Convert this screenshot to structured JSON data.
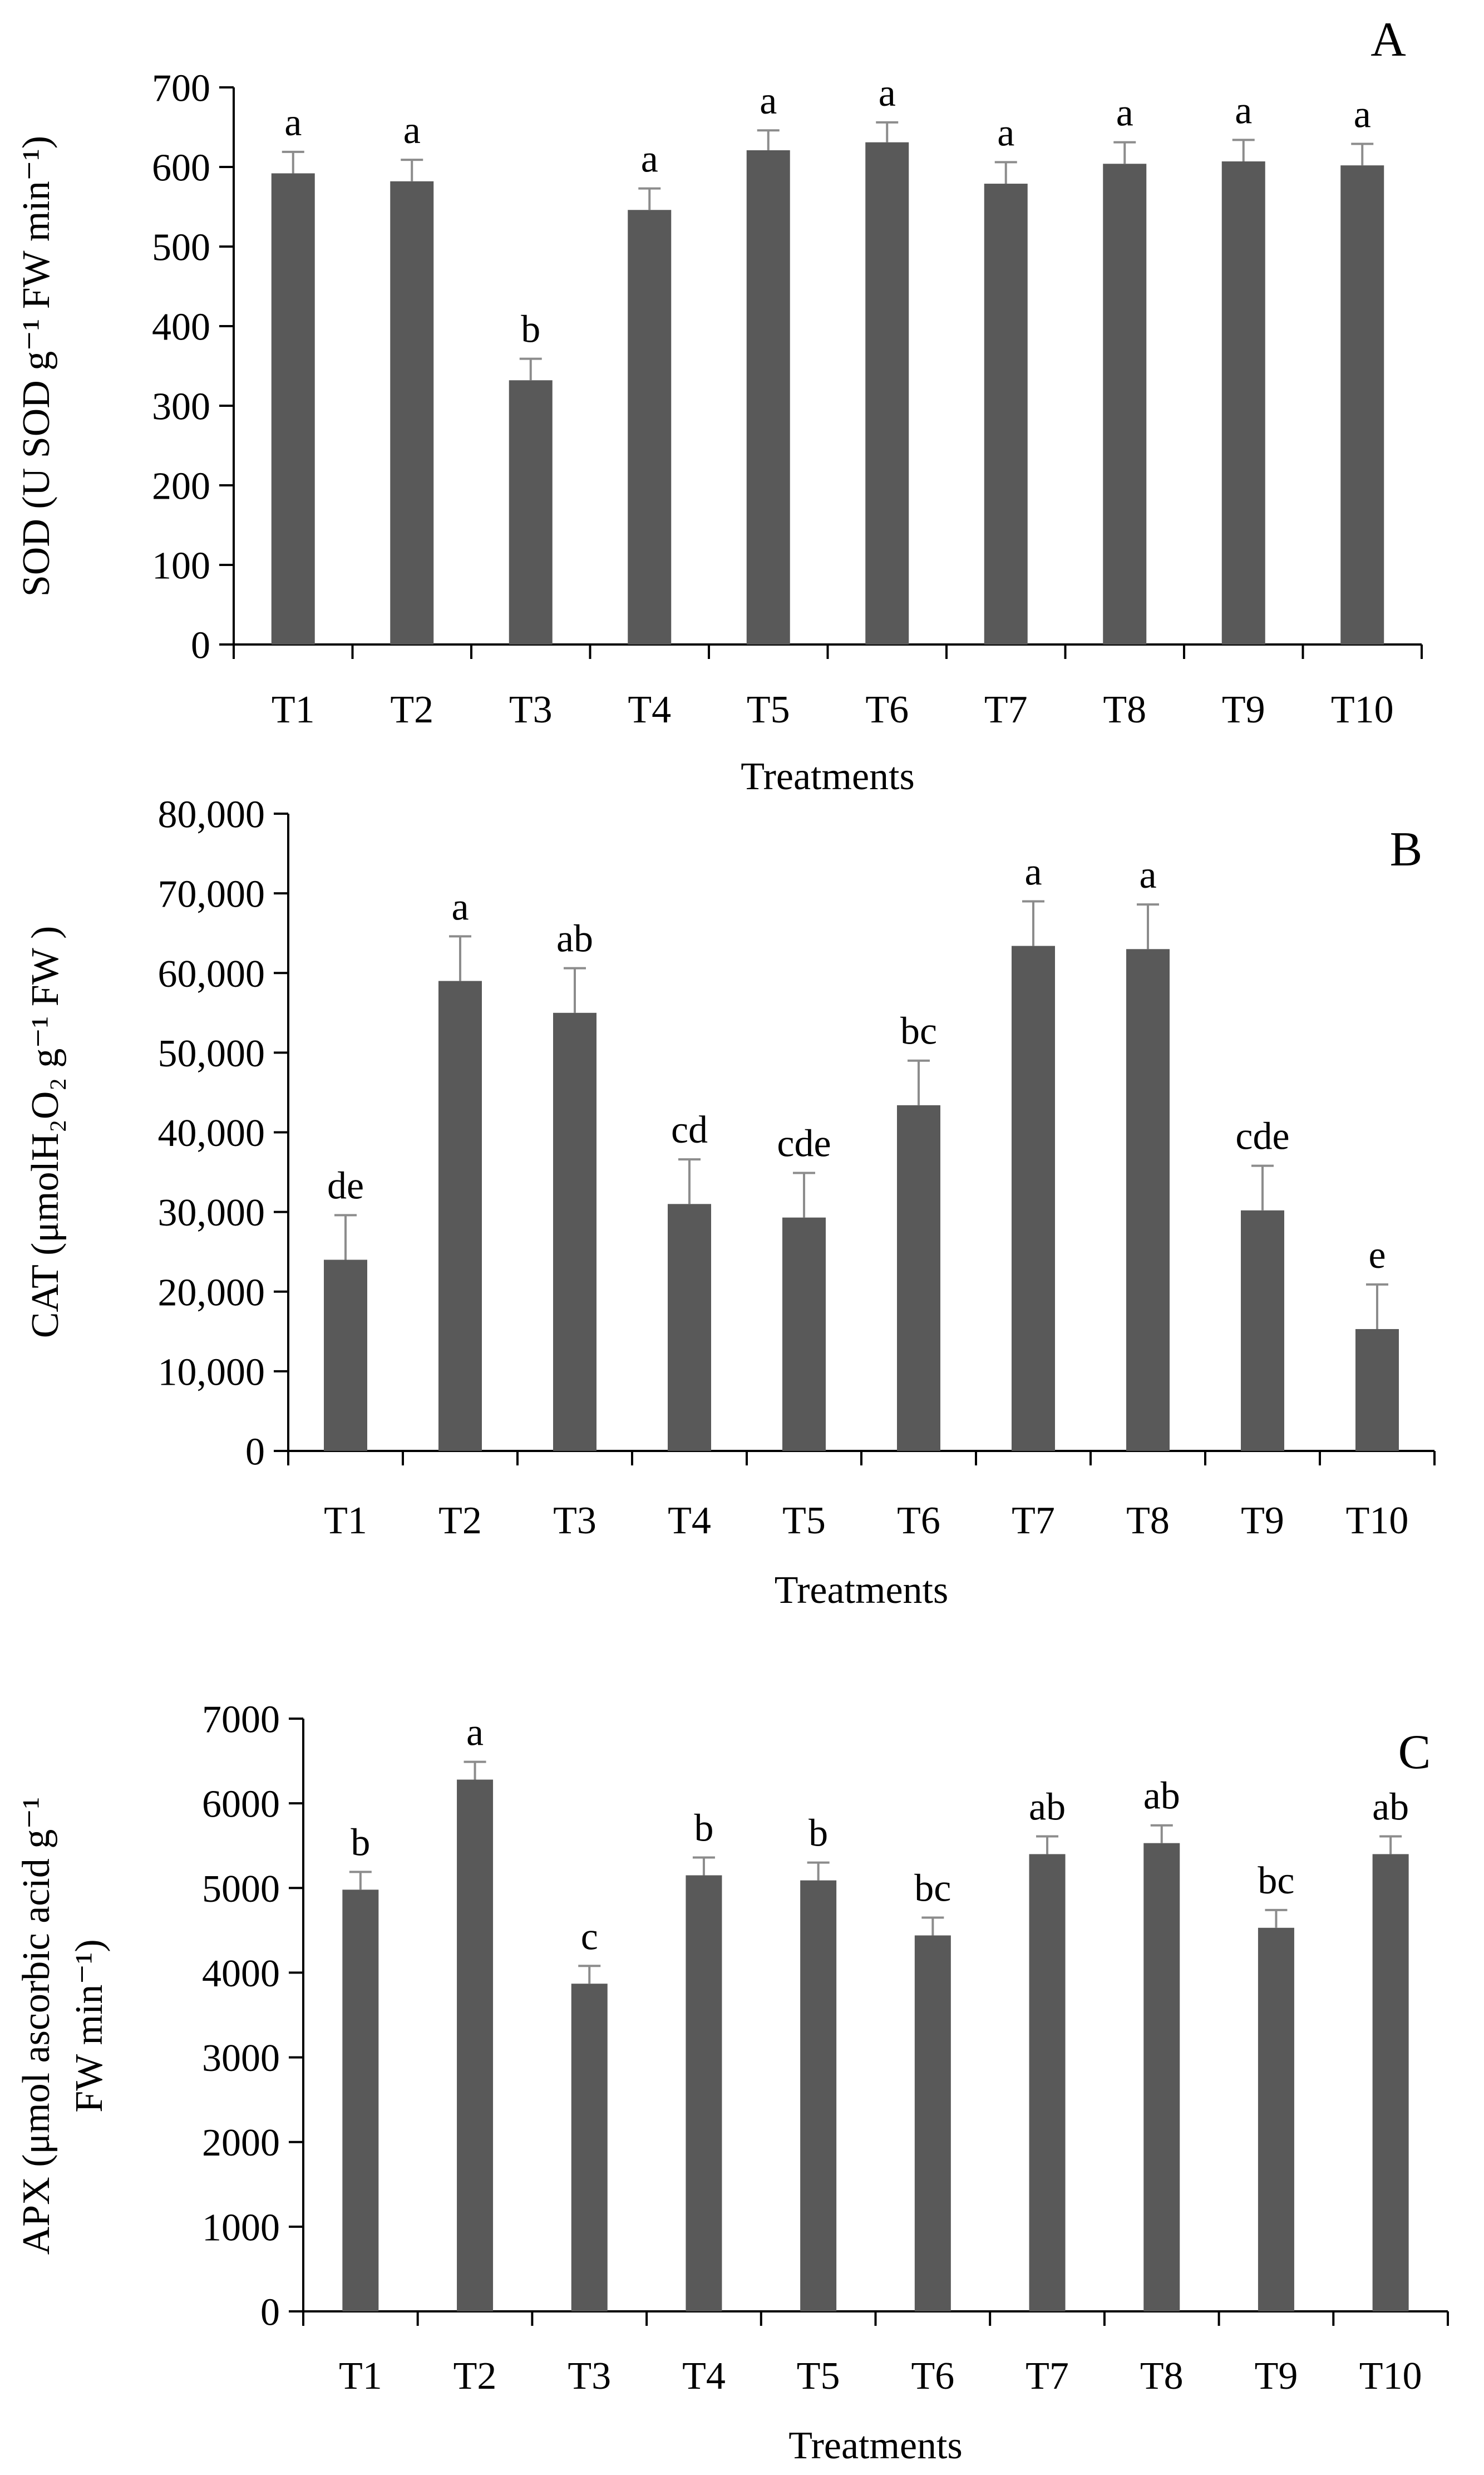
{
  "chart_data": [
    {
      "type": "bar",
      "panel_letter": "A",
      "categories": [
        "T1",
        "T2",
        "T3",
        "T4",
        "T5",
        "T6",
        "T7",
        "T8",
        "T9",
        "T10"
      ],
      "values": [
        592,
        582,
        332,
        546,
        621,
        631,
        579,
        604,
        607,
        602
      ],
      "error": [
        27,
        27,
        27,
        27,
        25,
        25,
        27,
        27,
        27,
        27
      ],
      "letters": [
        "a",
        "a",
        "b",
        "a",
        "a",
        "a",
        "a",
        "a",
        "a",
        "a"
      ],
      "ylim": [
        0,
        700
      ],
      "yticks": [
        0,
        100,
        200,
        300,
        400,
        500,
        600,
        700
      ],
      "ytick_labels": [
        "0",
        "100",
        "200",
        "300",
        "400",
        "500",
        "600",
        "700"
      ],
      "ylabel": "SOD (U SOD g⁻¹ FW min⁻¹)",
      "xlabel": "Treatments",
      "bar_color": "#595959",
      "error_color": "#8c8c8c",
      "grid": false
    },
    {
      "type": "bar",
      "panel_letter": "B",
      "categories": [
        "T1",
        "T2",
        "T3",
        "T4",
        "T5",
        "T6",
        "T7",
        "T8",
        "T9",
        "T10"
      ],
      "values": [
        24000,
        59000,
        55000,
        31000,
        29300,
        43400,
        63400,
        63000,
        30200,
        15300
      ],
      "error": [
        5600,
        5600,
        5600,
        5600,
        5600,
        5600,
        5600,
        5600,
        5600,
        5600
      ],
      "letters": [
        "de",
        "a",
        "ab",
        "cd",
        "cde",
        "bc",
        "a",
        "a",
        "cde",
        "e"
      ],
      "ylim": [
        0,
        80000
      ],
      "yticks": [
        0,
        10000,
        20000,
        30000,
        40000,
        50000,
        60000,
        70000,
        80000
      ],
      "ytick_labels": [
        "0",
        "10,000",
        "20,000",
        "30,000",
        "40,000",
        "50,000",
        "60,000",
        "70,000",
        "80,000"
      ],
      "ylabel": "CAT (μmolH₂O₂ g⁻¹ FW )",
      "xlabel": "Treatments",
      "bar_color": "#595959",
      "error_color": "#8c8c8c",
      "grid": false
    },
    {
      "type": "bar",
      "panel_letter": "C",
      "categories": [
        "T1",
        "T2",
        "T3",
        "T4",
        "T5",
        "T6",
        "T7",
        "T8",
        "T9",
        "T10"
      ],
      "values": [
        4980,
        6280,
        3870,
        5150,
        5090,
        4440,
        5400,
        5530,
        4530,
        5400
      ],
      "error": [
        210,
        210,
        210,
        210,
        210,
        210,
        210,
        210,
        210,
        210
      ],
      "letters": [
        "b",
        "a",
        "c",
        "b",
        "b",
        "bc",
        "ab",
        "ab",
        "bc",
        "ab"
      ],
      "ylim": [
        0,
        7000
      ],
      "yticks": [
        0,
        1000,
        2000,
        3000,
        4000,
        5000,
        6000,
        7000
      ],
      "ytick_labels": [
        "0",
        "1000",
        "2000",
        "3000",
        "4000",
        "5000",
        "6000",
        "7000"
      ],
      "ylabel_lines": [
        "APX (μmol ascorbic acid g⁻¹",
        "FW min⁻¹)"
      ],
      "xlabel": "Treatments",
      "bar_color": "#595959",
      "error_color": "#8c8c8c",
      "grid": false
    }
  ]
}
